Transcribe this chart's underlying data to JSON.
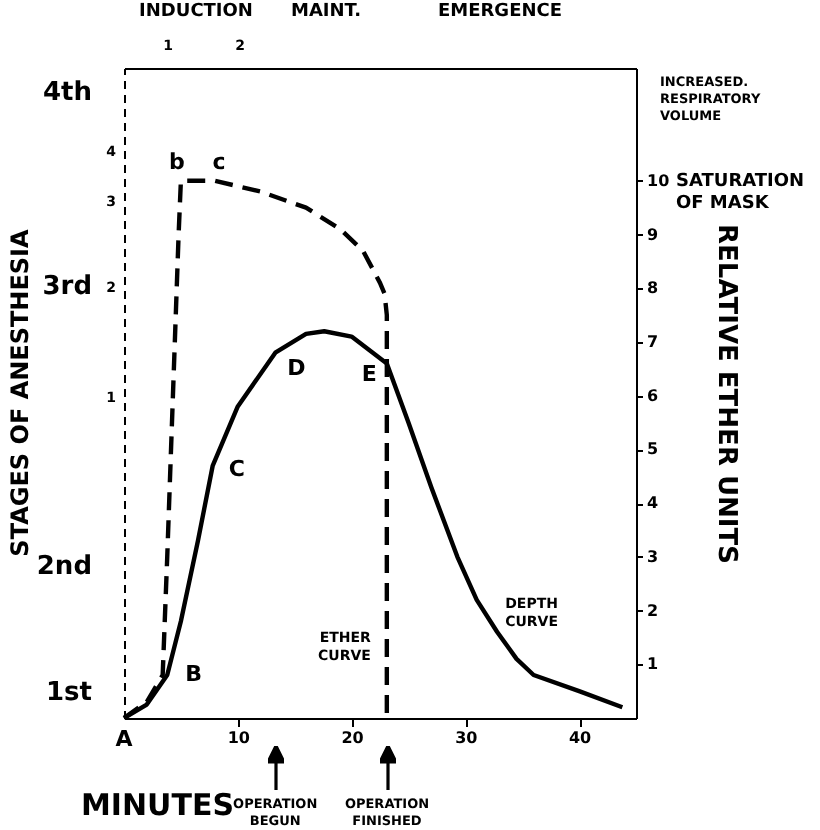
{
  "chart_data": {
    "type": "line",
    "xlabel": "MINUTES",
    "ylabel": "RELATIVE ETHER UNITS",
    "xlim": [
      0,
      45
    ],
    "xticks": [
      10,
      20,
      30,
      40
    ],
    "ylim": [
      0,
      12.1
    ],
    "yticks": [
      1,
      2,
      3,
      4,
      5,
      6,
      7,
      8,
      9,
      10
    ],
    "series": [
      {
        "name": "ETHER\nCURVE",
        "color": "#000000",
        "line_style": "dashed",
        "x": [
          0,
          2,
          3.4,
          3.8,
          4.3,
          4.8,
          5,
          8,
          12,
          16,
          19,
          21,
          22.5,
          22.9,
          23.1,
          23.1
        ],
        "values": [
          0,
          0.3,
          0.8,
          3,
          6,
          9,
          10,
          10,
          9.8,
          9.5,
          9.1,
          8.7,
          8.1,
          7.9,
          7.5,
          0
        ]
      },
      {
        "name": "DEPTH\nCURVE",
        "color": "#000000",
        "line_style": "solid",
        "x": [
          0,
          2,
          3.8,
          5,
          6.5,
          7.8,
          10,
          13.3,
          16,
          17.6,
          20,
          23.1,
          25,
          27,
          29.3,
          31,
          32.8,
          34.5,
          36,
          40,
          43.8
        ],
        "values": [
          0,
          0.25,
          0.8,
          1.8,
          3.3,
          4.7,
          5.8,
          6.8,
          7.15,
          7.2,
          7.1,
          6.6,
          5.5,
          4.3,
          3.0,
          2.2,
          1.6,
          1.1,
          0.8,
          0.5,
          0.2
        ]
      }
    ],
    "annotations": [
      {
        "text": "A",
        "x": 0,
        "y": 0
      },
      {
        "text": "B",
        "x": 3.8,
        "y": 0.8
      },
      {
        "text": "C",
        "x": 7.8,
        "y": 4.7
      },
      {
        "text": "D",
        "x": 13.3,
        "y": 6.8
      },
      {
        "text": "E",
        "x": 23.1,
        "y": 6.6
      },
      {
        "text": "b",
        "x": 5,
        "y": 10
      },
      {
        "text": "c",
        "x": 8,
        "y": 10
      },
      "INCREASED.\nRESPIRATORY\nVOLUME",
      "SATURATION\nOF MASK",
      "OPERATION\nBEGUN",
      "OPERATION\nFINISHED",
      "INDUCTION",
      "MAINT.",
      "EMERGENCE",
      "1",
      "2",
      "4th",
      "3rd",
      "2nd",
      "1st",
      "1",
      "2",
      "3",
      "4",
      "STAGES OF ANESTHESIA"
    ]
  }
}
